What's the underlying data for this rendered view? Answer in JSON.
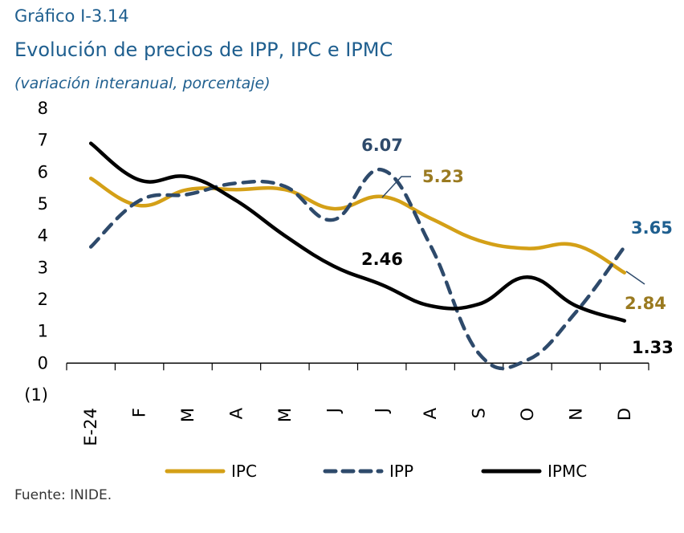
{
  "header": {
    "label": "Gráfico I-3.14",
    "title": "Evolución de precios de IPP, IPC e IPMC",
    "subtitle": "(variación interanual, porcentaje)"
  },
  "source": "Fuente: INIDE.",
  "chart_data": {
    "type": "line",
    "title": "Evolución de precios de IPP, IPC e IPMC",
    "subtitle": "(variación interanual, porcentaje)",
    "categories": [
      "E-24",
      "F",
      "M",
      "A",
      "M",
      "J",
      "J",
      "A",
      "S",
      "O",
      "N",
      "D"
    ],
    "ylim": [
      -1,
      8
    ],
    "yticks": [
      8,
      7,
      6,
      5,
      4,
      3,
      2,
      1,
      0,
      -1
    ],
    "ytick_labels": [
      "8",
      "7",
      "6",
      "5",
      "4",
      "3",
      "2",
      "1",
      "0",
      "(1)"
    ],
    "grid": false,
    "legend_position": "bottom",
    "series": [
      {
        "name": "IPC",
        "color": "#d4a017",
        "dash": "solid",
        "values": [
          5.8,
          4.95,
          5.45,
          5.45,
          5.45,
          4.85,
          5.23,
          4.55,
          3.85,
          3.6,
          3.7,
          2.84
        ]
      },
      {
        "name": "IPP",
        "color": "#2e4a6b",
        "dash": "dashed",
        "values": [
          3.65,
          5.1,
          5.3,
          5.65,
          5.55,
          4.5,
          6.07,
          3.7,
          0.3,
          0.1,
          1.6,
          3.65
        ]
      },
      {
        "name": "IPMC",
        "color": "#000000",
        "dash": "solid",
        "values": [
          6.9,
          5.75,
          5.85,
          5.1,
          4.0,
          3.05,
          2.46,
          1.8,
          1.85,
          2.7,
          1.8,
          1.33
        ]
      }
    ],
    "annotations": [
      {
        "text": "6.07",
        "series": "IPP",
        "color": "#2e4a6b"
      },
      {
        "text": "5.23",
        "series": "IPC",
        "color": "#9a7a20"
      },
      {
        "text": "3.65",
        "series": "IPP",
        "color": "#1f5f8f"
      },
      {
        "text": "2.84",
        "series": "IPC",
        "color": "#9a7a20"
      },
      {
        "text": "2.46",
        "series": "IPMC",
        "color": "#000000"
      },
      {
        "text": "1.33",
        "series": "IPMC",
        "color": "#000000"
      }
    ]
  }
}
